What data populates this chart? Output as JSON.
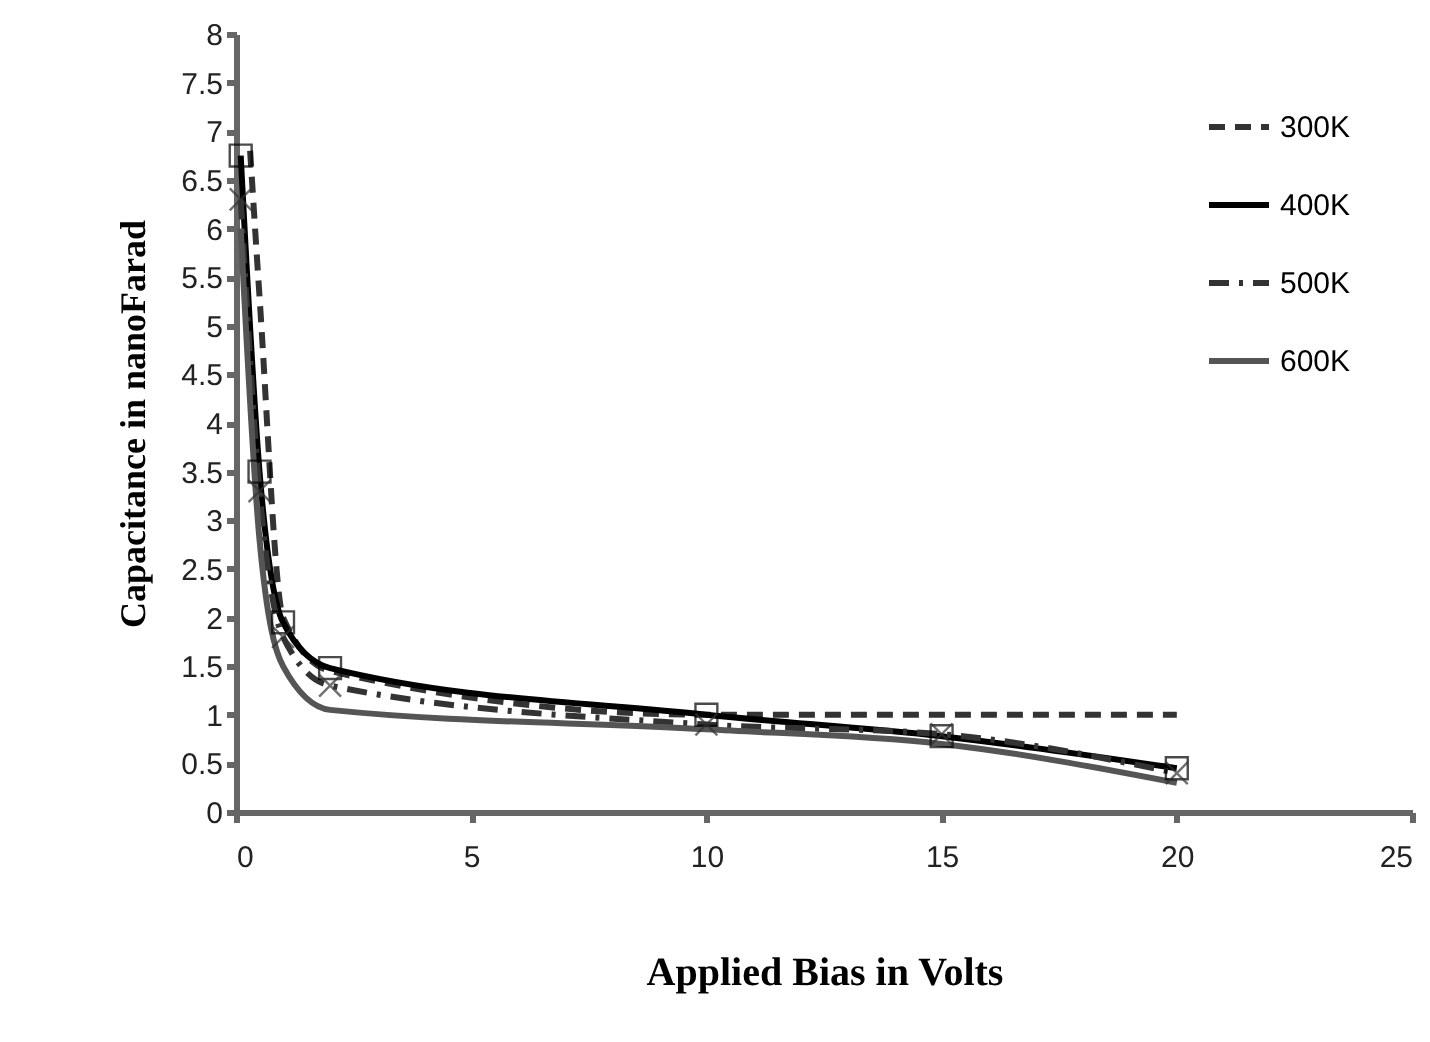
{
  "chart_data": {
    "type": "line",
    "xlabel": "Applied Bias in Volts",
    "ylabel": "Capacitance in nanoFarad",
    "xlim": [
      0,
      25
    ],
    "xticks": [
      0,
      5,
      10,
      15,
      20,
      25
    ],
    "ylim": [
      0,
      8
    ],
    "yticks": [
      0,
      0.5,
      1,
      1.5,
      2,
      2.5,
      3,
      3.5,
      4,
      4.5,
      5,
      5.5,
      6,
      6.5,
      7,
      7.5,
      8
    ],
    "grid": false,
    "legend": "top right",
    "series": [
      {
        "name": "300K",
        "color": "#333333",
        "line_style": "dashed",
        "marker": "none",
        "x": [
          0.3,
          0.5,
          1,
          2,
          10,
          15,
          20
        ],
        "values": [
          6.8,
          5.3,
          2.0,
          1.45,
          1.0,
          1.0,
          1.0
        ]
      },
      {
        "name": "400K",
        "color": "#000000",
        "line_style": "solid",
        "marker": "square",
        "x": [
          0.1,
          0.5,
          1,
          2,
          10,
          15,
          20
        ],
        "values": [
          6.75,
          3.5,
          1.95,
          1.48,
          1.0,
          0.78,
          0.45
        ]
      },
      {
        "name": "500K",
        "color": "#333333",
        "line_style": "dashdot",
        "marker": "cross",
        "x": [
          0.1,
          0.5,
          1,
          2,
          10,
          15,
          20
        ],
        "values": [
          6.3,
          3.3,
          1.8,
          1.3,
          0.9,
          0.8,
          0.4
        ]
      },
      {
        "name": "600K",
        "color": "#555555",
        "line_style": "solid",
        "marker": "none",
        "x": [
          0.1,
          0.5,
          1,
          2,
          10,
          15,
          20
        ],
        "values": [
          6.0,
          2.8,
          1.5,
          1.05,
          0.85,
          0.7,
          0.3
        ]
      }
    ]
  }
}
